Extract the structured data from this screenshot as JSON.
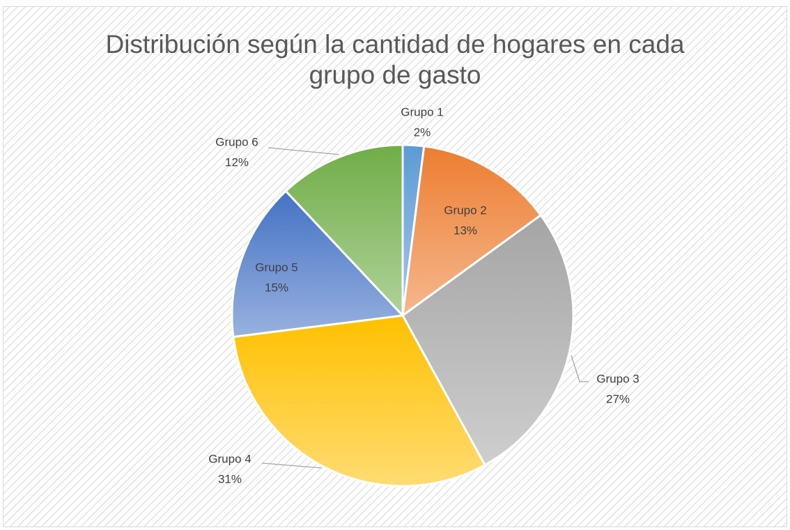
{
  "chart_data": {
    "type": "pie",
    "title": "Distribución según la cantidad de hogares en cada grupo de gasto",
    "categories": [
      "Grupo 1",
      "Grupo 2",
      "Grupo 3",
      "Grupo 4",
      "Grupo 5",
      "Grupo 6"
    ],
    "values": [
      2,
      13,
      27,
      31,
      15,
      12
    ],
    "value_labels": [
      "2%",
      "13%",
      "27%",
      "31%",
      "15%",
      "12%"
    ],
    "colors": [
      "#5b9bd5",
      "#ed7d31",
      "#a5a5a5",
      "#ffc000",
      "#4472c4",
      "#70ad47"
    ]
  }
}
